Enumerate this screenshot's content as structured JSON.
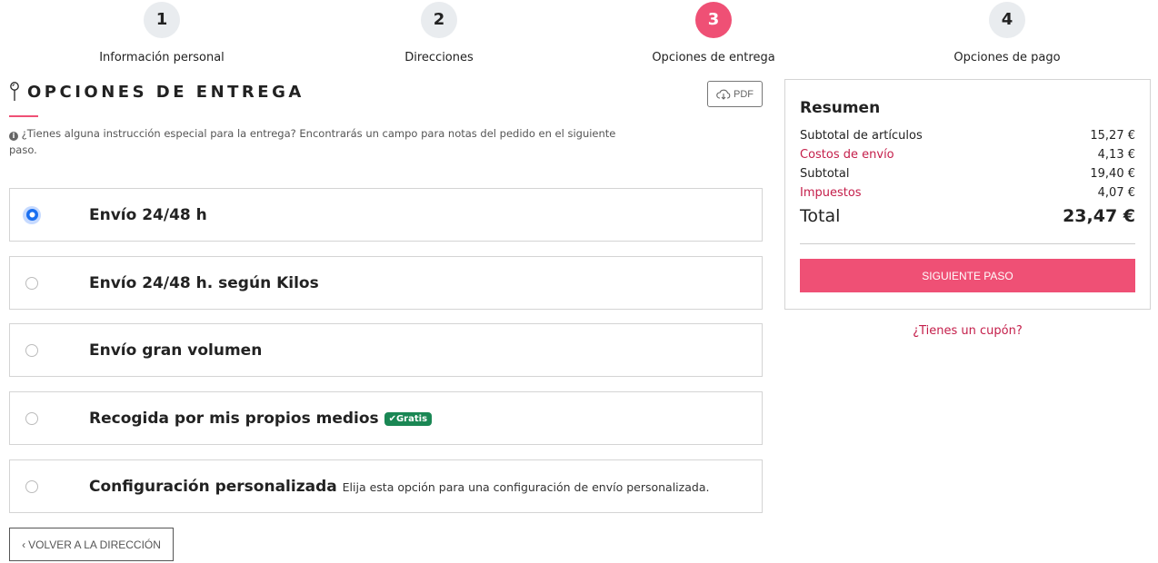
{
  "steps": [
    {
      "number": "1",
      "label": "Información personal"
    },
    {
      "number": "2",
      "label": "Direcciones"
    },
    {
      "number": "3",
      "label": "Opciones de entrega",
      "active": true
    },
    {
      "number": "4",
      "label": "Opciones de pago"
    }
  ],
  "section": {
    "title": "OPCIONES DE ENTREGA",
    "pdf_label": "PDF",
    "info": "¿Tienes alguna instrucción especial para la entrega? Encontrarás un campo para notas del pedido en el siguiente paso."
  },
  "options": [
    {
      "label": "Envío 24/48 h",
      "selected": true
    },
    {
      "label": "Envío 24/48 h. según Kilos",
      "selected": false
    },
    {
      "label": "Envío gran volumen",
      "selected": false
    },
    {
      "label": "Recogida por mis propios medios",
      "badge": "Gratis",
      "selected": false
    },
    {
      "label": "Configuración personalizada",
      "description": "Elija esta opción para una configuración de envío personalizada.",
      "selected": false
    }
  ],
  "back_label": "VOLVER A LA DIRECCIÓN",
  "summary": {
    "title": "Resumen",
    "subtotal_items_label": "Subtotal de artículos",
    "subtotal_items": "15,27 €",
    "shipping_label": "Costos de envío",
    "shipping": "4,13 €",
    "subtotal_label": "Subtotal",
    "subtotal": "19,40 €",
    "tax_label": "Impuestos",
    "tax": "4,07 €",
    "total_label": "Total",
    "total": "23,47 €",
    "next_label": "SIGUIENTE PASO"
  },
  "coupon_label": "¿Tienes un cupón?",
  "colors": {
    "accent": "#ef5075",
    "link": "#c41e4a",
    "badge": "#1a8754",
    "radio": "#1a6ff0"
  }
}
